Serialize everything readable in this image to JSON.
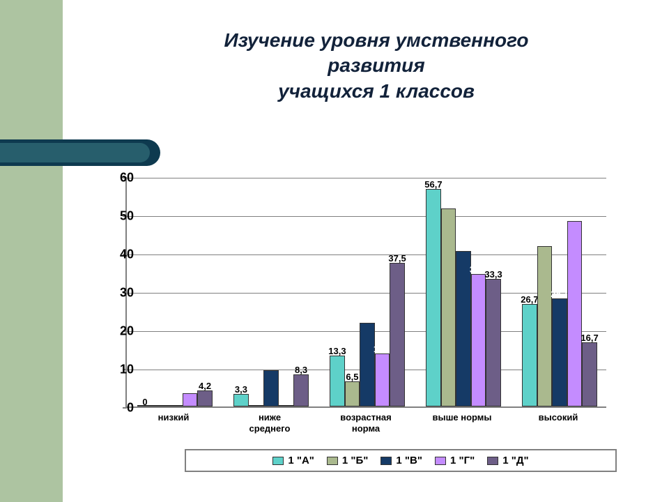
{
  "title_lines": [
    "Изучение уровня умственного",
    "развития",
    "учащихся 1 классов"
  ],
  "chart": {
    "type": "bar",
    "background_color": "#ffffff",
    "grid_color": "#808080",
    "axis_color": "#808080",
    "ylim": [
      0,
      60
    ],
    "ytick_step": 10,
    "yticks": [
      0,
      10,
      20,
      30,
      40,
      50,
      60
    ],
    "ytick_fontsize": 18,
    "categories": [
      "низкий",
      "ниже\nсреднего",
      "возрастная\nнорма",
      "выше нормы",
      "высокий"
    ],
    "series": [
      {
        "name": "1 \"А\"",
        "color": "#5ed1c9",
        "values": [
          0,
          3.3,
          13.3,
          56.7,
          26.7
        ],
        "labels": [
          "0",
          "3,3",
          "13,3",
          "56,7",
          "26,7"
        ]
      },
      {
        "name": "1 \"Б\"",
        "color": "#aab98e",
        "values": [
          0,
          0,
          6.5,
          51.6,
          41.9
        ],
        "labels": [
          "",
          "",
          "6,5",
          "",
          ""
        ]
      },
      {
        "name": "1 \"В\"",
        "color": "#153a66",
        "values": [
          0,
          9.4,
          21.9,
          40.6,
          28.1
        ],
        "labels": [
          "",
          "",
          "",
          "",
          "28,1"
        ]
      },
      {
        "name": "1 \"Г\"",
        "color": "#c48cff",
        "values": [
          3.4,
          0,
          13.8,
          34.5,
          48.3
        ],
        "labels": [
          "",
          "",
          "13,8",
          "34,5",
          ""
        ]
      },
      {
        "name": "1 \"Д\"",
        "color": "#6d5e87",
        "values": [
          4.2,
          8.3,
          37.5,
          33.3,
          16.7
        ],
        "labels": [
          "4,2",
          "8,3",
          "37,5",
          "33,3",
          "16,7"
        ]
      }
    ],
    "label_fontsize": 13,
    "cat_label_fontsize": 13,
    "legend_fontsize": 15,
    "bar_border_color": "#333333"
  },
  "left_band_color": "#adc4a1",
  "pill_outer_color": "#0e3a4f",
  "pill_inner_color": "#275e6c"
}
